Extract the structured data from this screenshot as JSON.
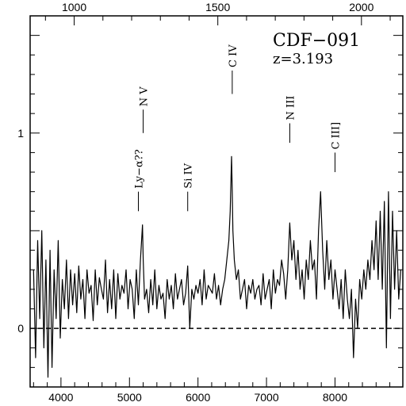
{
  "chart_data": {
    "type": "line",
    "title": "CDF−091",
    "subtitle": "z=3.193",
    "xlabel": "",
    "ylabel": "",
    "xlim": [
      3550,
      8990
    ],
    "ylim": [
      -0.3,
      1.6
    ],
    "x_ticks": [
      "4000",
      "5000",
      "6000",
      "7000",
      "8000"
    ],
    "x_tick_values": [
      4000,
      5000,
      6000,
      7000,
      8000
    ],
    "top_ticks": [
      "1000",
      "1500",
      "2000"
    ],
    "top_tick_values": [
      1000,
      1500,
      2000
    ],
    "y_ticks": [
      "0",
      "1"
    ],
    "y_tick_values": [
      0,
      1
    ],
    "zero_line": {
      "y": 0,
      "style": "dashed"
    },
    "grid": false,
    "legend": "none",
    "line_labels": [
      {
        "label": "Ly−α??",
        "x": 5130,
        "y_end": 0.6,
        "y_bar_top": 0.7
      },
      {
        "label": "N V",
        "x": 5200,
        "y_end": 1.0,
        "y_bar_top": 1.12
      },
      {
        "label": "Si IV",
        "x": 5850,
        "y_end": 0.6,
        "y_bar_top": 0.7
      },
      {
        "label": "C IV",
        "x": 6500,
        "y_end": 1.2,
        "y_bar_top": 1.32
      },
      {
        "label": "N III",
        "x": 7340,
        "y_end": 0.95,
        "y_bar_top": 1.05
      },
      {
        "label": "C III]",
        "x": 8000,
        "y_end": 0.8,
        "y_bar_top": 0.9
      }
    ],
    "series": [
      {
        "x": [
          3600,
          3630,
          3660,
          3690,
          3720,
          3750,
          3780,
          3810,
          3840,
          3870,
          3900,
          3930,
          3960,
          3990,
          4020,
          4050,
          4080,
          4110,
          4140,
          4170,
          4200,
          4230,
          4260,
          4290,
          4320,
          4350,
          4380,
          4410,
          4440,
          4470,
          4500,
          4530,
          4560,
          4590,
          4620,
          4650,
          4680,
          4710,
          4740,
          4770,
          4800,
          4830,
          4860,
          4890,
          4920,
          4950,
          4980,
          5010,
          5040,
          5070,
          5100,
          5130,
          5160,
          5190,
          5200,
          5220,
          5250,
          5280,
          5310,
          5340,
          5370,
          5400,
          5430,
          5460,
          5490,
          5520,
          5550,
          5580,
          5610,
          5640,
          5670,
          5700,
          5730,
          5760,
          5790,
          5820,
          5850,
          5880,
          5910,
          5940,
          5970,
          6000,
          6030,
          6060,
          6090,
          6120,
          6150,
          6180,
          6210,
          6240,
          6270,
          6300,
          6330,
          6360,
          6390,
          6420,
          6450,
          6470,
          6490,
          6500,
          6510,
          6530,
          6560,
          6590,
          6620,
          6650,
          6680,
          6710,
          6740,
          6770,
          6800,
          6830,
          6860,
          6890,
          6920,
          6950,
          6980,
          7010,
          7040,
          7070,
          7100,
          7130,
          7160,
          7190,
          7220,
          7250,
          7280,
          7310,
          7340,
          7370,
          7400,
          7430,
          7460,
          7490,
          7520,
          7550,
          7580,
          7610,
          7640,
          7670,
          7700,
          7730,
          7760,
          7790,
          7820,
          7850,
          7880,
          7910,
          7940,
          7970,
          8000,
          8030,
          8060,
          8090,
          8120,
          8150,
          8180,
          8210,
          8240,
          8270,
          8300,
          8330,
          8360,
          8390,
          8420,
          8450,
          8480,
          8510,
          8540,
          8570,
          8600,
          8630,
          8660,
          8690,
          8720,
          8750,
          8780,
          8810,
          8840,
          8870,
          8900,
          8930,
          8960
        ],
        "y": [
          0.3,
          -0.15,
          0.45,
          0.05,
          0.5,
          -0.1,
          0.35,
          -0.25,
          0.4,
          -0.2,
          0.3,
          0.05,
          0.45,
          -0.05,
          0.25,
          0.1,
          0.35,
          0.05,
          0.3,
          0.12,
          0.28,
          0.08,
          0.32,
          0.15,
          0.25,
          0.05,
          0.3,
          0.18,
          0.22,
          0.04,
          0.3,
          0.12,
          0.26,
          0.2,
          0.15,
          0.35,
          0.08,
          0.25,
          0.1,
          0.3,
          0.05,
          0.28,
          0.15,
          0.22,
          0.18,
          0.3,
          0.1,
          0.25,
          0.2,
          0.05,
          0.3,
          0.12,
          0.35,
          0.53,
          0.35,
          0.15,
          0.2,
          0.08,
          0.25,
          0.12,
          0.3,
          0.1,
          0.22,
          0.15,
          0.18,
          0.05,
          0.25,
          0.15,
          0.22,
          0.1,
          0.28,
          0.15,
          0.2,
          0.25,
          0.12,
          0.18,
          0.32,
          0.0,
          0.2,
          0.15,
          0.22,
          0.18,
          0.25,
          0.12,
          0.3,
          0.15,
          0.22,
          0.2,
          0.18,
          0.28,
          0.15,
          0.22,
          0.12,
          0.2,
          0.25,
          0.35,
          0.45,
          0.6,
          0.88,
          0.7,
          0.5,
          0.35,
          0.25,
          0.3,
          0.15,
          0.2,
          0.25,
          0.1,
          0.22,
          0.18,
          0.25,
          0.15,
          0.2,
          0.22,
          0.12,
          0.28,
          0.15,
          0.2,
          0.25,
          0.1,
          0.3,
          0.18,
          0.25,
          0.22,
          0.35,
          0.28,
          0.15,
          0.3,
          0.54,
          0.35,
          0.45,
          0.25,
          0.4,
          0.2,
          0.3,
          0.15,
          0.35,
          0.25,
          0.45,
          0.3,
          0.35,
          0.15,
          0.5,
          0.7,
          0.4,
          0.2,
          0.45,
          0.25,
          0.35,
          0.15,
          0.3,
          0.2,
          0.1,
          0.25,
          0.05,
          0.3,
          0.15,
          0.05,
          0.2,
          -0.15,
          0.15,
          0.0,
          0.25,
          0.15,
          0.3,
          0.2,
          0.35,
          0.25,
          0.45,
          0.3,
          0.55,
          0.25,
          0.6,
          0.2,
          0.65,
          -0.1,
          0.7,
          0.05,
          0.6,
          0.2,
          0.5,
          0.15,
          0.3
        ]
      }
    ]
  }
}
